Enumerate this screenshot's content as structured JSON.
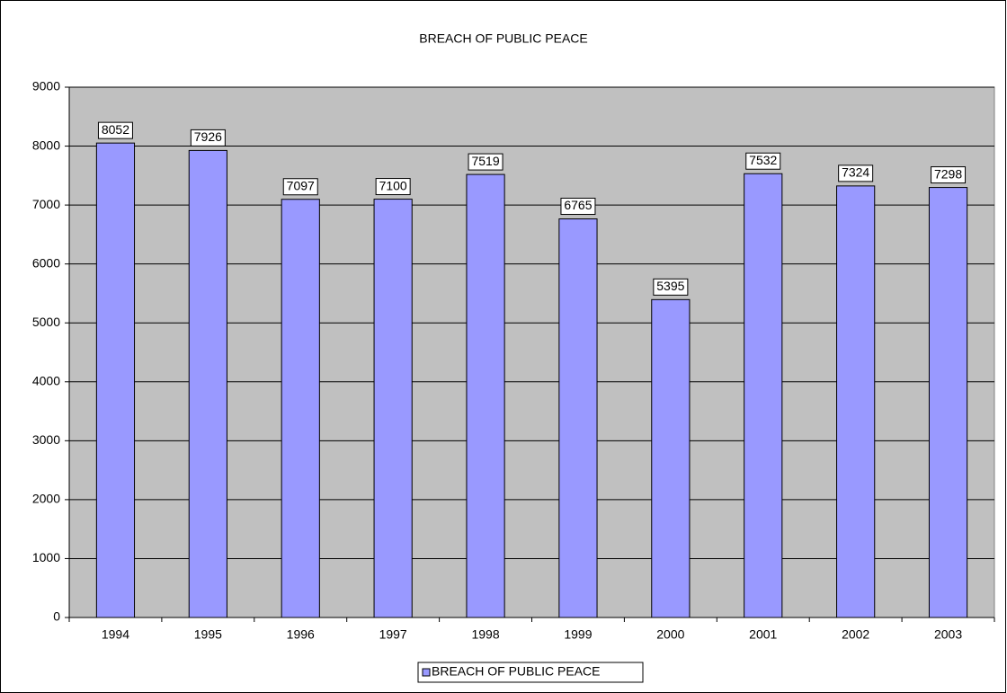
{
  "chart_data": {
    "type": "bar",
    "title": "BREACH OF PUBLIC PEACE",
    "categories": [
      "1994",
      "1995",
      "1996",
      "1997",
      "1998",
      "1999",
      "2000",
      "2001",
      "2002",
      "2003"
    ],
    "series": [
      {
        "name": "BREACH OF PUBLIC PEACE",
        "color": "#9999ff",
        "values": [
          8052,
          7926,
          7097,
          7100,
          7519,
          6765,
          5395,
          7532,
          7324,
          7298
        ]
      }
    ],
    "ylim": [
      0,
      9000
    ],
    "yticks": [
      0,
      1000,
      2000,
      3000,
      4000,
      5000,
      6000,
      7000,
      8000,
      9000
    ],
    "grid": true,
    "plot_background": "#c0c0c0",
    "legend": "bottom"
  }
}
